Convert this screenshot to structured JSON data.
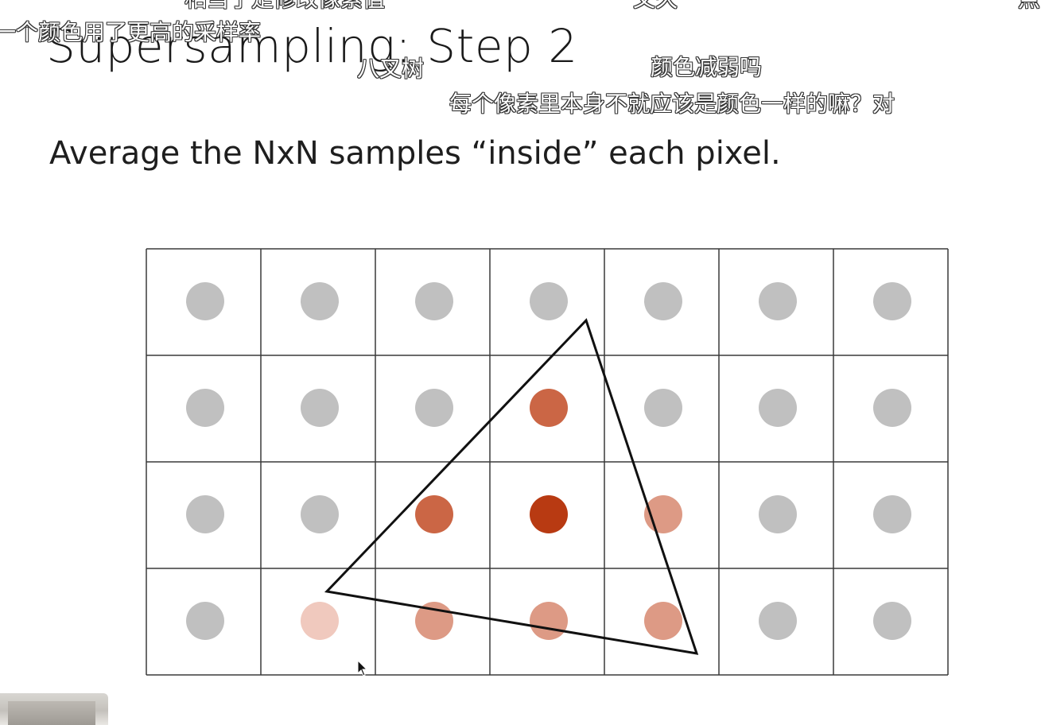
{
  "slide": {
    "title": "Supersampling: Step 2",
    "subtitle": "Average the NxN samples “inside” each pixel."
  },
  "grid": {
    "rows": 4,
    "cols": 7,
    "samples": [
      [
        "#c0c0c0",
        "#c0c0c0",
        "#c0c0c0",
        "#c0c0c0",
        "#c0c0c0",
        "#c0c0c0",
        "#c0c0c0"
      ],
      [
        "#c0c0c0",
        "#c0c0c0",
        "#c0c0c0",
        "#cb6645",
        "#c0c0c0",
        "#c0c0c0",
        "#c0c0c0"
      ],
      [
        "#c0c0c0",
        "#c0c0c0",
        "#cb6645",
        "#b83a12",
        "#dd9a85",
        "#c0c0c0",
        "#c0c0c0"
      ],
      [
        "#c0c0c0",
        "#f0c9be",
        "#dd9a85",
        "#dd9a85",
        "#dd9a85",
        "#c0c0c0",
        "#c0c0c0"
      ]
    ]
  },
  "overlay_comments": [
    {
      "id": "c1",
      "text": "相当于是修改像素值"
    },
    {
      "id": "c2",
      "text": "文久"
    },
    {
      "id": "c3",
      "text": "点"
    },
    {
      "id": "c4",
      "text": "一个颜色用了更高的采样率"
    },
    {
      "id": "c5",
      "text": "八叉树"
    },
    {
      "id": "c6",
      "text": "颜色减弱吗"
    },
    {
      "id": "c7",
      "text": "每个像素里本身不就应该是颜色一样的嘛？对"
    }
  ],
  "colors": {
    "sample_gray": "#c0c0c0",
    "grid_line": "#3a3a3a",
    "triangle": "#111111",
    "full_coverage": "#b83a12",
    "half_coverage": "#cb6645",
    "quarter_coverage": "#dd9a85",
    "light_coverage": "#f0c9be"
  },
  "icons": {
    "cursor": "mouse-pointer-icon"
  }
}
